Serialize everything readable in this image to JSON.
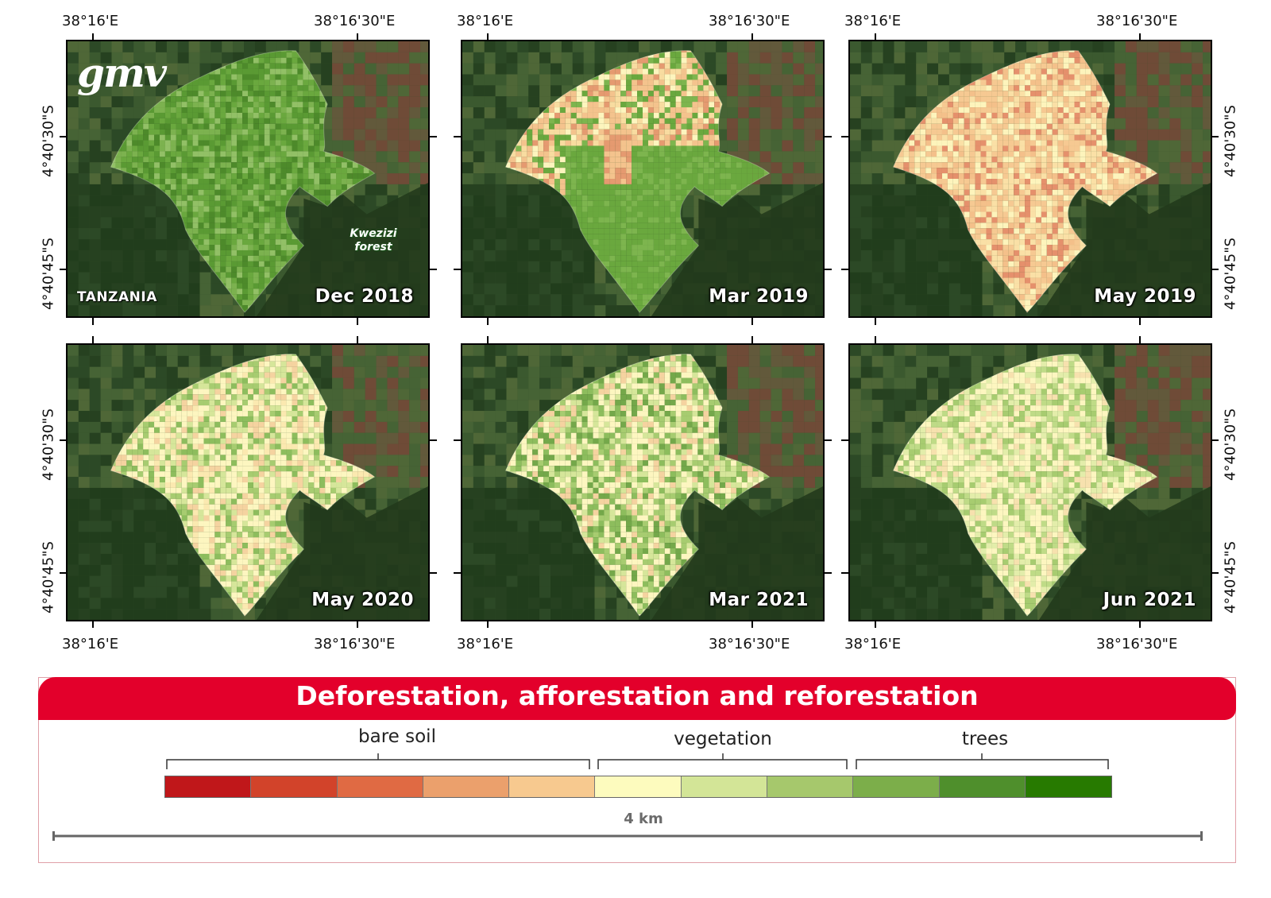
{
  "map": {
    "logo": "gmv",
    "country_label": "TANZANIA",
    "forest_label_line1": "Kwezizi",
    "forest_label_line2": "forest",
    "lon_left": "38°16'E",
    "lon_right": "38°16'30\"E",
    "lat_upper": "4°40'30\"S",
    "lat_lower": "4°40'45\"S",
    "panels": [
      {
        "date": "Dec 2018",
        "stage": "trees",
        "palette": [
          "#5a9a33",
          "#6aa83e",
          "#4d8a2a",
          "#7cb24f",
          "#92c066"
        ]
      },
      {
        "date": "Mar 2019",
        "stage": "mixed",
        "palette": [
          "#f4c38d",
          "#f8dca0",
          "#fdf5be",
          "#6aa83e",
          "#7db54e",
          "#e59a70"
        ]
      },
      {
        "date": "May 2019",
        "stage": "bare",
        "palette": [
          "#f6c992",
          "#fae0a6",
          "#fdf4bc",
          "#f4c08a",
          "#e5906c"
        ]
      },
      {
        "date": "May 2020",
        "stage": "vegetation",
        "palette": [
          "#fdf6c0",
          "#d6e69a",
          "#a7cc70",
          "#f5d3a0",
          "#8dbd5d",
          "#fbe9b0"
        ]
      },
      {
        "date": "Mar 2021",
        "stage": "vegetation",
        "palette": [
          "#fdf6c0",
          "#d6e69a",
          "#a7cc70",
          "#8dbd5d",
          "#f5d3a0",
          "#74a84a"
        ]
      },
      {
        "date": "Jun 2021",
        "stage": "vegetation",
        "palette": [
          "#fdf6c0",
          "#e3edaa",
          "#bfdb87",
          "#a7cc70",
          "#f7e1ae"
        ]
      }
    ]
  },
  "legend": {
    "title": "Deforestation, afforestation and reforestation",
    "groups": [
      {
        "label": "bare soil"
      },
      {
        "label": "vegetation"
      },
      {
        "label": "trees"
      }
    ],
    "colors": [
      "#c0171a",
      "#d2432a",
      "#e06a43",
      "#eba06c",
      "#f7c98f",
      "#fdfbbe",
      "#d3e597",
      "#a6c86c",
      "#7cae4a",
      "#4f8f2c",
      "#277a00"
    ],
    "scale_label": "4 km"
  }
}
